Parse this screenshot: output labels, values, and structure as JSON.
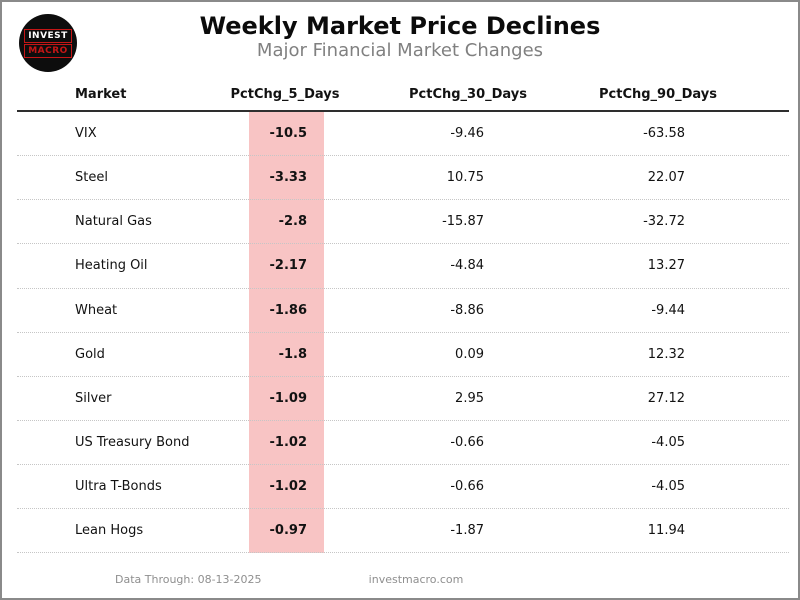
{
  "page": {
    "title": "Weekly Market Price Declines",
    "subtitle": "Major Financial Market Changes"
  },
  "logo": {
    "line1": "INVEST",
    "line2": "MACRO"
  },
  "chart_data": {
    "type": "table",
    "title": "Weekly Market Price Declines",
    "subtitle": "Major Financial Market Changes",
    "columns": [
      "Market",
      "PctChg_5_Days",
      "PctChg_30_Days",
      "PctChg_90_Days"
    ],
    "highlighted_column": "PctChg_5_Days",
    "rows": [
      {
        "market": "VIX",
        "d5": -10.5,
        "d30": -9.46,
        "d90": -63.58
      },
      {
        "market": "Steel",
        "d5": -3.33,
        "d30": 10.75,
        "d90": 22.07
      },
      {
        "market": "Natural Gas",
        "d5": -2.8,
        "d30": -15.87,
        "d90": -32.72
      },
      {
        "market": "Heating Oil",
        "d5": -2.17,
        "d30": -4.84,
        "d90": 13.27
      },
      {
        "market": "Wheat",
        "d5": -1.86,
        "d30": -8.86,
        "d90": -9.44
      },
      {
        "market": "Gold",
        "d5": -1.8,
        "d30": 0.09,
        "d90": 12.32
      },
      {
        "market": "Silver",
        "d5": -1.09,
        "d30": 2.95,
        "d90": 27.12
      },
      {
        "market": "US Treasury Bond",
        "d5": -1.02,
        "d30": -0.66,
        "d90": -4.05
      },
      {
        "market": "Ultra T-Bonds",
        "d5": -1.02,
        "d30": -0.66,
        "d90": -4.05
      },
      {
        "market": "Lean Hogs",
        "d5": -0.97,
        "d30": -1.87,
        "d90": 11.94
      }
    ]
  },
  "footer": {
    "data_through": "Data Through: 08-13-2025",
    "website": "investmacro.com"
  },
  "colors": {
    "highlight_band": "#f8c4c4",
    "logo_red": "#c51616",
    "logo_background": "#0d0d0d",
    "subtitle_gray": "#808080",
    "footer_gray": "#8f8f8f",
    "header_divider": "#2e2e2e",
    "row_divider": "#c6c6c6",
    "page_border": "#8a8a8a"
  }
}
